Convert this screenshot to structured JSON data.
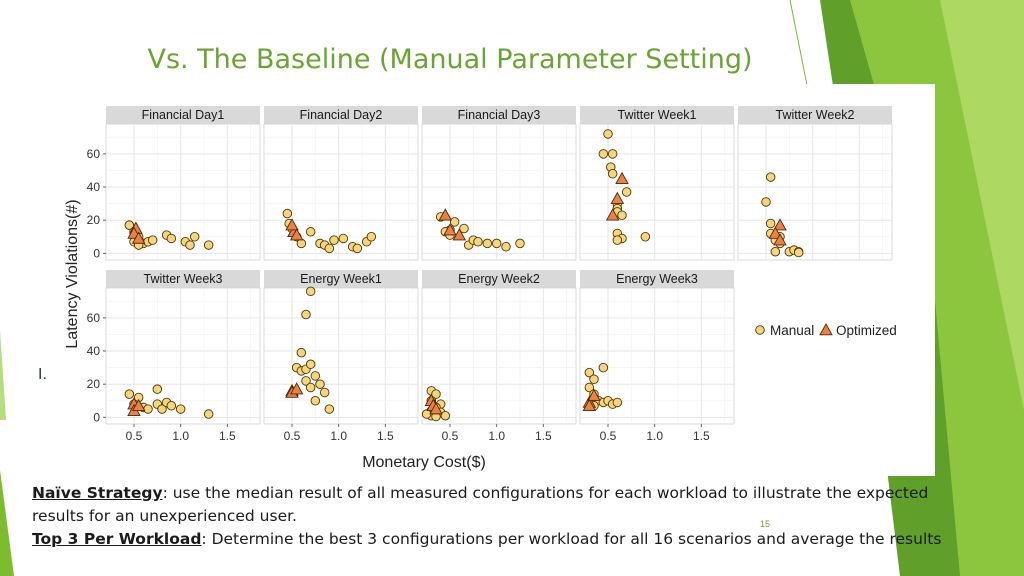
{
  "slide": {
    "title": "Vs. The Baseline (Manual Parameter Setting)",
    "page_number": "15",
    "stray_mark": "I.",
    "colors": {
      "title": "#6aa531",
      "accent_green": "#7dbb2f",
      "manual_fill": "#f7d57a",
      "optimized_fill": "#f08040"
    }
  },
  "caption": {
    "line1_key": "Naïve Strategy",
    "line1_text": ": use the median result of all measured configurations for each workload to illustrate the expected results for an unexperienced user.",
    "line2_key": "Top 3 Per Workload",
    "line2_text": ": Determine the best 3 configurations per workload for all 16 scenarios and average the results"
  },
  "chart_data": {
    "type": "scatter",
    "xlabel": "Monetary Cost($)",
    "ylabel": "Latency Violations(#)",
    "xlim": [
      0.2,
      1.85
    ],
    "ylim": [
      -4,
      78
    ],
    "xticks": [
      0.5,
      1.0,
      1.5
    ],
    "xtick_labels": [
      "0.5",
      "1.0",
      "1.5"
    ],
    "yticks": [
      0,
      20,
      40,
      60
    ],
    "ytick_labels": [
      "0",
      "20",
      "40",
      "60"
    ],
    "grid": true,
    "legend": {
      "placement": "right",
      "entries": [
        "Manual",
        "Optimized"
      ]
    },
    "panels": [
      {
        "name": "Financial Day1",
        "manual": [
          [
            0.45,
            17
          ],
          [
            0.5,
            13
          ],
          [
            0.55,
            10
          ],
          [
            0.5,
            7
          ],
          [
            0.6,
            6
          ],
          [
            0.65,
            7
          ],
          [
            0.7,
            8
          ],
          [
            0.55,
            5
          ],
          [
            0.85,
            11
          ],
          [
            0.9,
            9
          ],
          [
            1.05,
            7
          ],
          [
            1.1,
            5
          ],
          [
            1.15,
            10
          ],
          [
            1.3,
            5
          ]
        ],
        "optimized": [
          [
            0.52,
            15
          ],
          [
            0.5,
            12
          ],
          [
            0.55,
            9
          ]
        ]
      },
      {
        "name": "Financial Day2",
        "manual": [
          [
            0.45,
            24
          ],
          [
            0.47,
            18
          ],
          [
            0.5,
            15
          ],
          [
            0.55,
            10
          ],
          [
            0.6,
            6
          ],
          [
            0.8,
            6
          ],
          [
            0.85,
            5
          ],
          [
            0.9,
            3
          ],
          [
            0.7,
            13
          ],
          [
            0.95,
            8
          ],
          [
            1.05,
            9
          ],
          [
            1.15,
            4
          ],
          [
            1.2,
            3
          ],
          [
            1.3,
            7
          ],
          [
            1.35,
            10
          ]
        ],
        "optimized": [
          [
            0.52,
            13
          ],
          [
            0.5,
            17
          ],
          [
            0.55,
            11
          ]
        ]
      },
      {
        "name": "Financial Day3",
        "manual": [
          [
            0.4,
            22
          ],
          [
            0.55,
            19
          ],
          [
            0.5,
            14
          ],
          [
            0.45,
            13
          ],
          [
            0.5,
            11
          ],
          [
            0.65,
            15
          ],
          [
            0.7,
            5
          ],
          [
            0.75,
            8
          ],
          [
            0.8,
            7
          ],
          [
            0.9,
            6
          ],
          [
            1.0,
            6
          ],
          [
            1.1,
            4
          ],
          [
            1.25,
            6
          ]
        ],
        "optimized": [
          [
            0.45,
            23
          ],
          [
            0.5,
            14
          ],
          [
            0.6,
            11
          ]
        ]
      },
      {
        "name": "Twitter Week1",
        "manual": [
          [
            0.5,
            72
          ],
          [
            0.45,
            60
          ],
          [
            0.55,
            60
          ],
          [
            0.53,
            52
          ],
          [
            0.55,
            48
          ],
          [
            0.7,
            37
          ],
          [
            0.6,
            30
          ],
          [
            0.6,
            27
          ],
          [
            0.6,
            25
          ],
          [
            0.65,
            23
          ],
          [
            0.6,
            12
          ],
          [
            0.65,
            9
          ],
          [
            0.6,
            8
          ],
          [
            0.9,
            10
          ]
        ],
        "optimized": [
          [
            0.65,
            45
          ],
          [
            0.6,
            33
          ],
          [
            0.55,
            23
          ]
        ]
      },
      {
        "name": "Twitter Week2",
        "manual": [
          [
            0.55,
            46
          ],
          [
            0.5,
            31
          ],
          [
            0.55,
            18
          ],
          [
            0.55,
            12
          ],
          [
            0.65,
            10
          ],
          [
            0.6,
            8
          ],
          [
            0.65,
            6
          ],
          [
            0.6,
            1
          ],
          [
            0.75,
            1
          ],
          [
            0.8,
            2
          ],
          [
            0.85,
            1
          ],
          [
            0.85,
            0.5
          ]
        ],
        "optimized": [
          [
            0.65,
            17
          ],
          [
            0.6,
            12
          ],
          [
            0.65,
            8
          ]
        ]
      },
      {
        "name": "Twitter Week3",
        "manual": [
          [
            0.45,
            14
          ],
          [
            0.55,
            12
          ],
          [
            0.75,
            17
          ],
          [
            0.5,
            8
          ],
          [
            0.6,
            6
          ],
          [
            0.65,
            5
          ],
          [
            0.75,
            8
          ],
          [
            0.8,
            5
          ],
          [
            0.85,
            9
          ],
          [
            0.9,
            7
          ],
          [
            1.0,
            5
          ],
          [
            1.3,
            2
          ]
        ],
        "optimized": [
          [
            0.5,
            8
          ],
          [
            0.5,
            4
          ],
          [
            0.55,
            7
          ]
        ]
      },
      {
        "name": "Energy Week1",
        "manual": [
          [
            0.7,
            76
          ],
          [
            0.65,
            62
          ],
          [
            0.6,
            39
          ],
          [
            0.55,
            30
          ],
          [
            0.6,
            28
          ],
          [
            0.65,
            29
          ],
          [
            0.7,
            32
          ],
          [
            0.75,
            25
          ],
          [
            0.65,
            22
          ],
          [
            0.7,
            18
          ],
          [
            0.8,
            20
          ],
          [
            0.75,
            10
          ],
          [
            0.85,
            15
          ],
          [
            0.9,
            5
          ]
        ],
        "optimized": [
          [
            0.5,
            16
          ],
          [
            0.5,
            15
          ],
          [
            0.55,
            17
          ]
        ]
      },
      {
        "name": "Energy Week2",
        "manual": [
          [
            0.3,
            16
          ],
          [
            0.35,
            14
          ],
          [
            0.3,
            10
          ],
          [
            0.4,
            8
          ],
          [
            0.35,
            6
          ],
          [
            0.3,
            4
          ],
          [
            0.4,
            3
          ],
          [
            0.45,
            1
          ],
          [
            0.3,
            1
          ],
          [
            0.25,
            2
          ],
          [
            0.35,
            0.5
          ]
        ],
        "optimized": [
          [
            0.3,
            10
          ],
          [
            0.32,
            7
          ],
          [
            0.35,
            5
          ]
        ]
      },
      {
        "name": "Energy Week3",
        "manual": [
          [
            0.3,
            27
          ],
          [
            0.35,
            23
          ],
          [
            0.45,
            30
          ],
          [
            0.3,
            18
          ],
          [
            0.35,
            14
          ],
          [
            0.4,
            10
          ],
          [
            0.45,
            9
          ],
          [
            0.5,
            10
          ],
          [
            0.55,
            8
          ],
          [
            0.6,
            9
          ],
          [
            0.35,
            7
          ]
        ],
        "optimized": [
          [
            0.3,
            9
          ],
          [
            0.35,
            13
          ],
          [
            0.3,
            7
          ]
        ]
      }
    ]
  }
}
